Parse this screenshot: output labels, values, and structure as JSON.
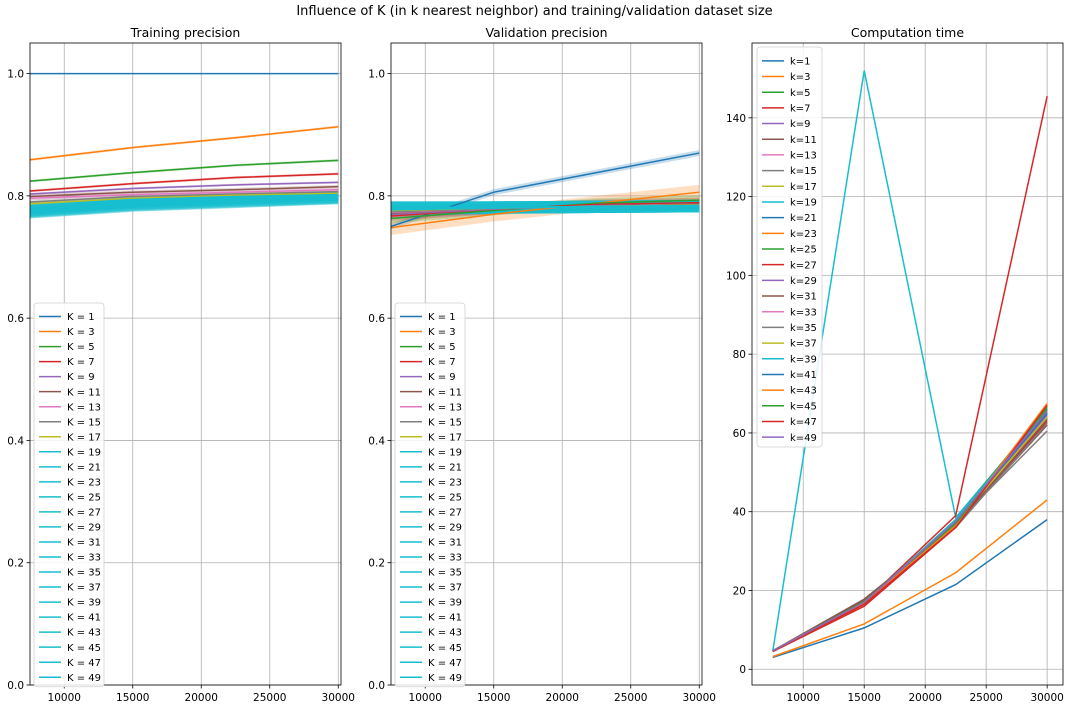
{
  "figure": {
    "suptitle": "Influence of K (in k nearest neighbor) and training/validation dataset size"
  },
  "chart_data": [
    {
      "type": "line",
      "title": "Training precision",
      "xlabel": "",
      "ylabel": "",
      "xlim": [
        7500,
        30200
      ],
      "ylim": [
        0,
        1.05
      ],
      "xticks": [
        10000,
        15000,
        20000,
        25000,
        30000
      ],
      "yticks": [
        0.0,
        0.2,
        0.4,
        0.6,
        0.8,
        1.0
      ],
      "grid": true,
      "legend": "center-left",
      "x": [
        7500,
        15000,
        22500,
        30000
      ],
      "series": [
        {
          "name": "K = 1",
          "color": "#1f77b4",
          "values": [
            1.0,
            1.0,
            1.0,
            1.0
          ]
        },
        {
          "name": "K = 3",
          "color": "#ff7f0e",
          "values": [
            0.859,
            0.879,
            0.895,
            0.913
          ],
          "band": 0.002
        },
        {
          "name": "K = 5",
          "color": "#2ca02c",
          "values": [
            0.824,
            0.838,
            0.85,
            0.858
          ],
          "band": 0.002
        },
        {
          "name": "K = 7",
          "color": "#d62728",
          "values": [
            0.808,
            0.82,
            0.83,
            0.836
          ],
          "band": 0.002
        },
        {
          "name": "K = 9",
          "color": "#9467bd",
          "values": [
            0.803,
            0.812,
            0.818,
            0.822
          ],
          "band": 0.002
        },
        {
          "name": "K = 11",
          "color": "#8c564b",
          "values": [
            0.799,
            0.806,
            0.81,
            0.815
          ],
          "band": 0.003
        },
        {
          "name": "K = 13",
          "color": "#e377c2",
          "values": [
            0.796,
            0.802,
            0.806,
            0.81
          ],
          "band": 0.003
        },
        {
          "name": "K = 15",
          "color": "#7f7f7f",
          "values": [
            0.79,
            0.799,
            0.803,
            0.807
          ],
          "band": 0.004
        },
        {
          "name": "K = 17",
          "color": "#bcbd22",
          "values": [
            0.787,
            0.796,
            0.801,
            0.804
          ],
          "band": 0.004
        },
        {
          "name": "K = 19",
          "color": "#17becf",
          "values": [
            0.784,
            0.794,
            0.799,
            0.802
          ],
          "band": 0.006
        },
        {
          "name": "K = 21",
          "color": "#17becf",
          "values": [
            0.781,
            0.792,
            0.797,
            0.801
          ],
          "band": 0.006
        },
        {
          "name": "K = 23",
          "color": "#17becf",
          "values": [
            0.779,
            0.79,
            0.796,
            0.8
          ],
          "band": 0.007
        },
        {
          "name": "K = 25",
          "color": "#17becf",
          "values": [
            0.778,
            0.789,
            0.795,
            0.799
          ],
          "band": 0.007
        },
        {
          "name": "K = 27",
          "color": "#17becf",
          "values": [
            0.777,
            0.788,
            0.794,
            0.799
          ],
          "band": 0.007
        },
        {
          "name": "K = 29",
          "color": "#17becf",
          "values": [
            0.776,
            0.787,
            0.793,
            0.798
          ],
          "band": 0.008
        },
        {
          "name": "K = 31",
          "color": "#17becf",
          "values": [
            0.775,
            0.786,
            0.792,
            0.798
          ],
          "band": 0.008
        },
        {
          "name": "K = 33",
          "color": "#17becf",
          "values": [
            0.775,
            0.786,
            0.792,
            0.797
          ],
          "band": 0.008
        },
        {
          "name": "K = 35",
          "color": "#17becf",
          "values": [
            0.774,
            0.785,
            0.791,
            0.797
          ],
          "band": 0.008
        },
        {
          "name": "K = 37",
          "color": "#17becf",
          "values": [
            0.774,
            0.785,
            0.791,
            0.796
          ],
          "band": 0.008
        },
        {
          "name": "K = 39",
          "color": "#17becf",
          "values": [
            0.773,
            0.784,
            0.79,
            0.796
          ],
          "band": 0.008
        },
        {
          "name": "K = 41",
          "color": "#17becf",
          "values": [
            0.773,
            0.784,
            0.79,
            0.795
          ],
          "band": 0.008
        },
        {
          "name": "K = 43",
          "color": "#17becf",
          "values": [
            0.772,
            0.783,
            0.789,
            0.795
          ],
          "band": 0.008
        },
        {
          "name": "K = 45",
          "color": "#17becf",
          "values": [
            0.772,
            0.783,
            0.789,
            0.795
          ],
          "band": 0.008
        },
        {
          "name": "K = 47",
          "color": "#17becf",
          "values": [
            0.771,
            0.782,
            0.788,
            0.794
          ],
          "band": 0.008
        },
        {
          "name": "K = 49",
          "color": "#17becf",
          "values": [
            0.771,
            0.782,
            0.788,
            0.794
          ],
          "band": 0.008
        }
      ]
    },
    {
      "type": "line",
      "title": "Validation precision",
      "xlabel": "",
      "ylabel": "",
      "xlim": [
        7500,
        30200
      ],
      "ylim": [
        0,
        1.05
      ],
      "xticks": [
        10000,
        15000,
        20000,
        25000,
        30000
      ],
      "yticks": [
        0.0,
        0.2,
        0.4,
        0.6,
        0.8,
        1.0
      ],
      "grid": true,
      "legend": "center-left",
      "x": [
        7500,
        15000,
        22500,
        30000
      ],
      "series": [
        {
          "name": "K = 1",
          "color": "#1f77b4",
          "values": [
            0.75,
            0.806,
            0.838,
            0.87
          ],
          "band": 0.005
        },
        {
          "name": "K = 3",
          "color": "#ff7f0e",
          "values": [
            0.748,
            0.77,
            0.788,
            0.806
          ],
          "band": 0.012
        },
        {
          "name": "K = 5",
          "color": "#2ca02c",
          "values": [
            0.763,
            0.776,
            0.788,
            0.793
          ],
          "band": 0.008
        },
        {
          "name": "K = 7",
          "color": "#d62728",
          "values": [
            0.767,
            0.778,
            0.786,
            0.789
          ],
          "band": 0.008
        },
        {
          "name": "K = 9",
          "color": "#9467bd",
          "values": [
            0.77,
            0.778,
            0.784,
            0.786
          ],
          "band": 0.008
        },
        {
          "name": "K = 11",
          "color": "#8c564b",
          "values": [
            0.772,
            0.779,
            0.783,
            0.786
          ],
          "band": 0.008
        },
        {
          "name": "K = 13",
          "color": "#e377c2",
          "values": [
            0.773,
            0.779,
            0.783,
            0.785
          ],
          "band": 0.008
        },
        {
          "name": "K = 15",
          "color": "#7f7f7f",
          "values": [
            0.774,
            0.779,
            0.783,
            0.785
          ],
          "band": 0.008
        },
        {
          "name": "K = 17",
          "color": "#bcbd22",
          "values": [
            0.776,
            0.78,
            0.783,
            0.785
          ],
          "band": 0.008
        },
        {
          "name": "K = 19",
          "color": "#17becf",
          "values": [
            0.777,
            0.78,
            0.783,
            0.784
          ],
          "band": 0.01
        },
        {
          "name": "K = 21",
          "color": "#17becf",
          "values": [
            0.778,
            0.78,
            0.782,
            0.784
          ],
          "band": 0.01
        },
        {
          "name": "K = 23",
          "color": "#17becf",
          "values": [
            0.779,
            0.781,
            0.782,
            0.784
          ],
          "band": 0.01
        },
        {
          "name": "K = 25",
          "color": "#17becf",
          "values": [
            0.779,
            0.781,
            0.782,
            0.784
          ],
          "band": 0.01
        },
        {
          "name": "K = 27",
          "color": "#17becf",
          "values": [
            0.78,
            0.781,
            0.782,
            0.783
          ],
          "band": 0.01
        },
        {
          "name": "K = 29",
          "color": "#17becf",
          "values": [
            0.78,
            0.781,
            0.782,
            0.783
          ],
          "band": 0.01
        },
        {
          "name": "K = 31",
          "color": "#17becf",
          "values": [
            0.78,
            0.781,
            0.782,
            0.783
          ],
          "band": 0.01
        },
        {
          "name": "K = 33",
          "color": "#17becf",
          "values": [
            0.78,
            0.781,
            0.782,
            0.783
          ],
          "band": 0.01
        },
        {
          "name": "K = 35",
          "color": "#17becf",
          "values": [
            0.78,
            0.781,
            0.782,
            0.783
          ],
          "band": 0.01
        },
        {
          "name": "K = 37",
          "color": "#17becf",
          "values": [
            0.781,
            0.781,
            0.782,
            0.783
          ],
          "band": 0.01
        },
        {
          "name": "K = 39",
          "color": "#17becf",
          "values": [
            0.781,
            0.781,
            0.782,
            0.783
          ],
          "band": 0.01
        },
        {
          "name": "K = 41",
          "color": "#17becf",
          "values": [
            0.781,
            0.781,
            0.782,
            0.783
          ],
          "band": 0.01
        },
        {
          "name": "K = 43",
          "color": "#17becf",
          "values": [
            0.781,
            0.781,
            0.782,
            0.783
          ],
          "band": 0.01
        },
        {
          "name": "K = 45",
          "color": "#17becf",
          "values": [
            0.781,
            0.781,
            0.782,
            0.783
          ],
          "band": 0.01
        },
        {
          "name": "K = 47",
          "color": "#17becf",
          "values": [
            0.781,
            0.781,
            0.782,
            0.783
          ],
          "band": 0.01
        },
        {
          "name": "K = 49",
          "color": "#17becf",
          "values": [
            0.781,
            0.781,
            0.782,
            0.783
          ],
          "band": 0.01
        }
      ]
    },
    {
      "type": "line",
      "title": "Computation time",
      "xlabel": "",
      "ylabel": "",
      "xlim": [
        5800,
        31300
      ],
      "ylim": [
        -4,
        159
      ],
      "xticks": [
        10000,
        15000,
        20000,
        25000,
        30000
      ],
      "yticks": [
        0,
        20,
        40,
        60,
        80,
        100,
        120,
        140
      ],
      "grid": true,
      "legend": "upper-left",
      "x": [
        7500,
        15000,
        22500,
        30000
      ],
      "series": [
        {
          "name": "k=1",
          "color": "#1f77b4",
          "values": [
            3.0,
            10.5,
            21.5,
            38.0
          ]
        },
        {
          "name": "k=3",
          "color": "#ff7f0e",
          "values": [
            3.2,
            11.5,
            24.5,
            43.0
          ]
        },
        {
          "name": "k=5",
          "color": "#2ca02c",
          "values": [
            4.5,
            16.5,
            36.5,
            64.0
          ]
        },
        {
          "name": "k=7",
          "color": "#d62728",
          "values": [
            4.5,
            16.0,
            36.0,
            63.0
          ]
        },
        {
          "name": "k=9",
          "color": "#9467bd",
          "values": [
            4.6,
            16.8,
            37.0,
            64.0
          ]
        },
        {
          "name": "k=11",
          "color": "#8c564b",
          "values": [
            4.7,
            17.5,
            36.5,
            62.0
          ]
        },
        {
          "name": "k=13",
          "color": "#e377c2",
          "values": [
            4.6,
            17.0,
            37.5,
            64.5
          ]
        },
        {
          "name": "k=15",
          "color": "#7f7f7f",
          "values": [
            4.7,
            17.2,
            37.0,
            60.5
          ]
        },
        {
          "name": "k=17",
          "color": "#bcbd22",
          "values": [
            4.6,
            16.5,
            37.5,
            65.0
          ]
        },
        {
          "name": "k=19",
          "color": "#17becf",
          "values": [
            4.5,
            152.0,
            38.5,
            66.0
          ]
        },
        {
          "name": "k=21",
          "color": "#1f77b4",
          "values": [
            4.6,
            16.8,
            37.5,
            65.0
          ]
        },
        {
          "name": "k=23",
          "color": "#ff7f0e",
          "values": [
            4.7,
            16.5,
            37.0,
            67.0
          ]
        },
        {
          "name": "k=25",
          "color": "#2ca02c",
          "values": [
            4.6,
            16.8,
            38.0,
            66.5
          ]
        },
        {
          "name": "k=27",
          "color": "#d62728",
          "values": [
            4.5,
            17.0,
            39.0,
            145.5
          ]
        },
        {
          "name": "k=29",
          "color": "#9467bd",
          "values": [
            4.6,
            16.6,
            37.0,
            64.5
          ]
        },
        {
          "name": "k=31",
          "color": "#8c564b",
          "values": [
            4.7,
            17.8,
            36.5,
            63.5
          ]
        },
        {
          "name": "k=33",
          "color": "#e377c2",
          "values": [
            4.6,
            17.0,
            37.5,
            65.5
          ]
        },
        {
          "name": "k=35",
          "color": "#7f7f7f",
          "values": [
            4.6,
            16.8,
            36.0,
            62.5
          ]
        },
        {
          "name": "k=37",
          "color": "#bcbd22",
          "values": [
            4.7,
            17.0,
            37.0,
            64.0
          ]
        },
        {
          "name": "k=39",
          "color": "#17becf",
          "values": [
            4.6,
            16.9,
            38.0,
            66.0
          ]
        },
        {
          "name": "k=41",
          "color": "#1f77b4",
          "values": [
            4.7,
            17.0,
            37.5,
            65.0
          ]
        },
        {
          "name": "k=43",
          "color": "#ff7f0e",
          "values": [
            4.6,
            16.8,
            36.5,
            67.5
          ]
        },
        {
          "name": "k=45",
          "color": "#2ca02c",
          "values": [
            4.7,
            17.2,
            37.0,
            66.0
          ]
        },
        {
          "name": "k=47",
          "color": "#d62728",
          "values": [
            4.6,
            16.5,
            36.0,
            67.0
          ]
        },
        {
          "name": "k=49",
          "color": "#9467bd",
          "values": [
            4.7,
            17.0,
            37.5,
            65.5
          ]
        }
      ]
    }
  ]
}
